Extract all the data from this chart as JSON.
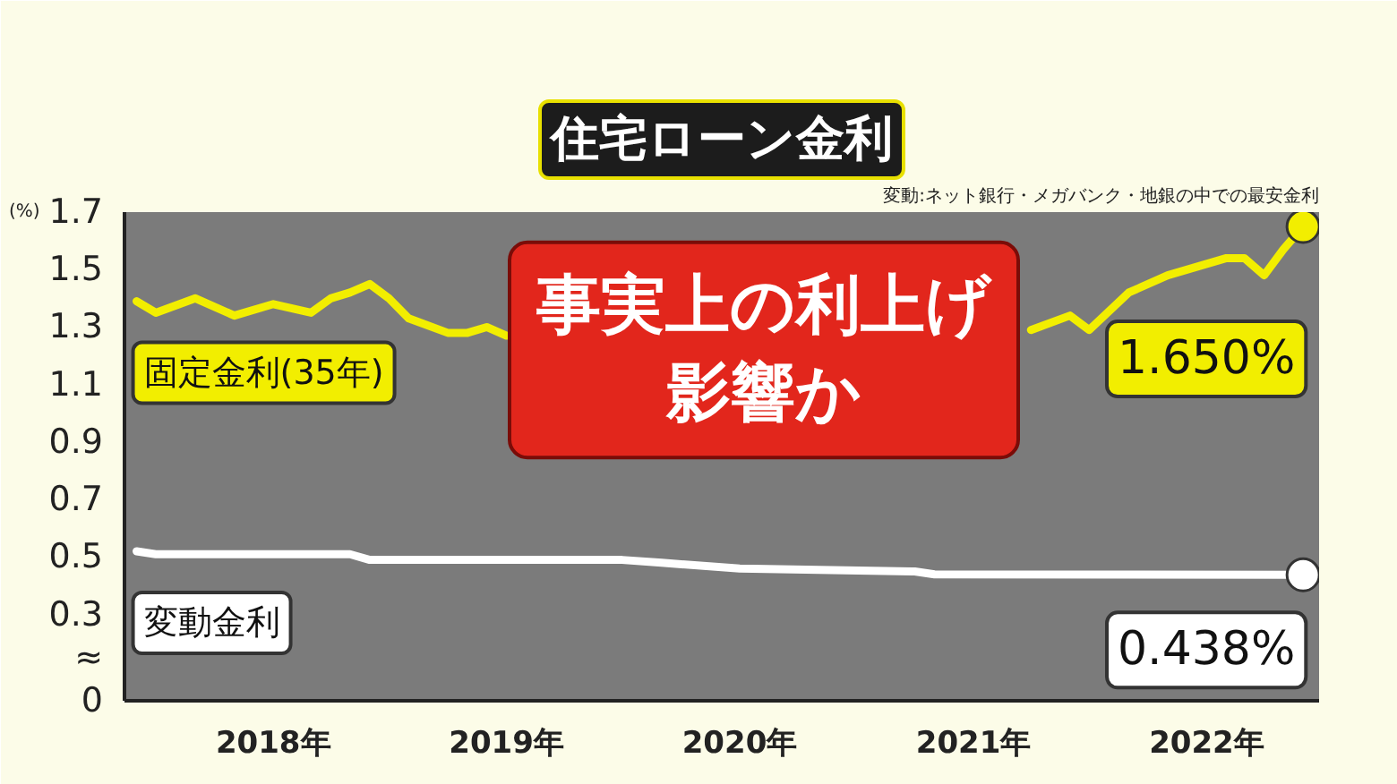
{
  "chart_data": {
    "type": "line",
    "title": "住宅ローン金利",
    "ylabel": "(%)",
    "annotations": [
      "変動:ネット銀行・メガバンク・地銀の中での最安金利",
      "事実上の利上げ影響か",
      {
        "text": "1.650%",
        "x": "2022-06",
        "y": 1.65
      },
      {
        "text": "0.438%",
        "x": "2022-06",
        "y": 0.438
      }
    ],
    "series": [
      {
        "name": "固定金利(35年)",
        "color": "#f2ee00",
        "x": [
          "2017-06",
          "2017-07",
          "2017-09",
          "2017-11",
          "2018-01",
          "2018-03",
          "2018-04",
          "2018-05",
          "2018-06",
          "2018-07",
          "2018-08",
          "2018-10",
          "2018-11",
          "2018-12",
          "2019-01",
          "2020-01",
          "2021-04",
          "2021-06",
          "2021-07",
          "2021-09",
          "2021-11",
          "2022-02",
          "2022-03",
          "2022-04",
          "2022-05",
          "2022-06"
        ],
        "values": [
          1.39,
          1.35,
          1.4,
          1.34,
          1.38,
          1.35,
          1.4,
          1.42,
          1.45,
          1.4,
          1.33,
          1.28,
          1.28,
          1.3,
          1.27,
          null,
          1.29,
          1.34,
          1.29,
          1.42,
          1.48,
          1.54,
          1.54,
          1.48,
          1.57,
          1.65
        ]
      },
      {
        "name": "変動金利",
        "color": "#ffffff",
        "x": [
          "2017-06",
          "2017-07",
          "2018-05",
          "2018-06",
          "2019-07",
          "2019-09",
          "2020-01",
          "2020-10",
          "2020-11",
          "2022-06"
        ],
        "values": [
          0.52,
          0.51,
          0.51,
          0.49,
          0.49,
          0.48,
          0.46,
          0.45,
          0.44,
          0.438
        ]
      },
      {
        "type": "scatter",
        "marker": "circle",
        "color": "#f2ee00",
        "x": [
          "2022-06"
        ],
        "values": [
          1.65
        ]
      },
      {
        "type": "scatter",
        "marker": "circle",
        "color": "#ffffff",
        "x": [
          "2022-06"
        ],
        "values": [
          0.438
        ]
      }
    ],
    "xlim": [
      "2017-05-13",
      "2022-06-26"
    ],
    "xticks": [
      {
        "value": "2018-01-01",
        "label": "2018年"
      },
      {
        "value": "2019-01-01",
        "label": "2019年"
      },
      {
        "value": "2020-01-01",
        "label": "2020年"
      },
      {
        "value": "2021-01-01",
        "label": "2021年"
      },
      {
        "value": "2022-01-01",
        "label": "2022年"
      }
    ],
    "ylim": [
      0,
      1.7
    ],
    "yticks": [
      0,
      {
        "value": 0.15,
        "label": "≈"
      },
      0.3,
      0.5,
      0.7,
      0.9,
      1.1,
      1.3,
      1.5,
      1.7
    ],
    "line_style": "solid"
  }
}
